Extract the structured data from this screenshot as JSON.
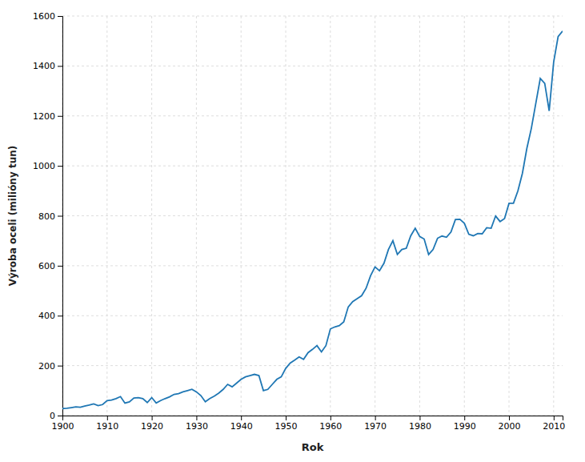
{
  "chart_data": {
    "type": "line",
    "xlabel": "Rok",
    "ylabel": "Výroba oceli (milióny tun)",
    "x": [
      1900,
      1901,
      1902,
      1903,
      1904,
      1905,
      1906,
      1907,
      1908,
      1909,
      1910,
      1911,
      1912,
      1913,
      1914,
      1915,
      1916,
      1917,
      1918,
      1919,
      1920,
      1921,
      1922,
      1923,
      1924,
      1925,
      1926,
      1927,
      1928,
      1929,
      1930,
      1931,
      1932,
      1933,
      1934,
      1935,
      1936,
      1937,
      1938,
      1939,
      1940,
      1941,
      1942,
      1943,
      1944,
      1945,
      1946,
      1947,
      1948,
      1949,
      1950,
      1951,
      1952,
      1953,
      1954,
      1955,
      1956,
      1957,
      1958,
      1959,
      1960,
      1961,
      1962,
      1963,
      1964,
      1965,
      1966,
      1967,
      1968,
      1969,
      1970,
      1971,
      1972,
      1973,
      1974,
      1975,
      1976,
      1977,
      1978,
      1979,
      1980,
      1981,
      1982,
      1983,
      1984,
      1985,
      1986,
      1987,
      1988,
      1989,
      1990,
      1991,
      1992,
      1993,
      1994,
      1995,
      1996,
      1997,
      1998,
      1999,
      2000,
      2001,
      2002,
      2003,
      2004,
      2005,
      2006,
      2007,
      2008,
      2009,
      2010,
      2011,
      2012
    ],
    "values": [
      28,
      29,
      32,
      35,
      33,
      38,
      42,
      47,
      40,
      44,
      60,
      62,
      68,
      76,
      50,
      55,
      70,
      72,
      68,
      52,
      72,
      50,
      60,
      68,
      75,
      85,
      88,
      95,
      100,
      105,
      95,
      80,
      55,
      68,
      78,
      90,
      105,
      125,
      115,
      130,
      145,
      155,
      160,
      165,
      160,
      100,
      105,
      125,
      145,
      155,
      189,
      210,
      222,
      235,
      225,
      252,
      265,
      280,
      255,
      280,
      347,
      355,
      360,
      375,
      435,
      456,
      468,
      480,
      510,
      560,
      595,
      580,
      610,
      665,
      700,
      645,
      665,
      670,
      720,
      750,
      717,
      707,
      645,
      665,
      710,
      719,
      714,
      735,
      785,
      786,
      770,
      726,
      720,
      729,
      728,
      752,
      750,
      799,
      777,
      789,
      850,
      850,
      900,
      970,
      1070,
      1150,
      1250,
      1350,
      1330,
      1220,
      1415,
      1518,
      1540
    ],
    "xlim": [
      1900,
      2012
    ],
    "ylim": [
      0,
      1600
    ],
    "xticks": [
      1900,
      1910,
      1920,
      1930,
      1940,
      1950,
      1960,
      1970,
      1980,
      1990,
      2000,
      2010
    ],
    "yticks": [
      0,
      200,
      400,
      600,
      800,
      1000,
      1200,
      1400,
      1600
    ],
    "grid": true
  }
}
